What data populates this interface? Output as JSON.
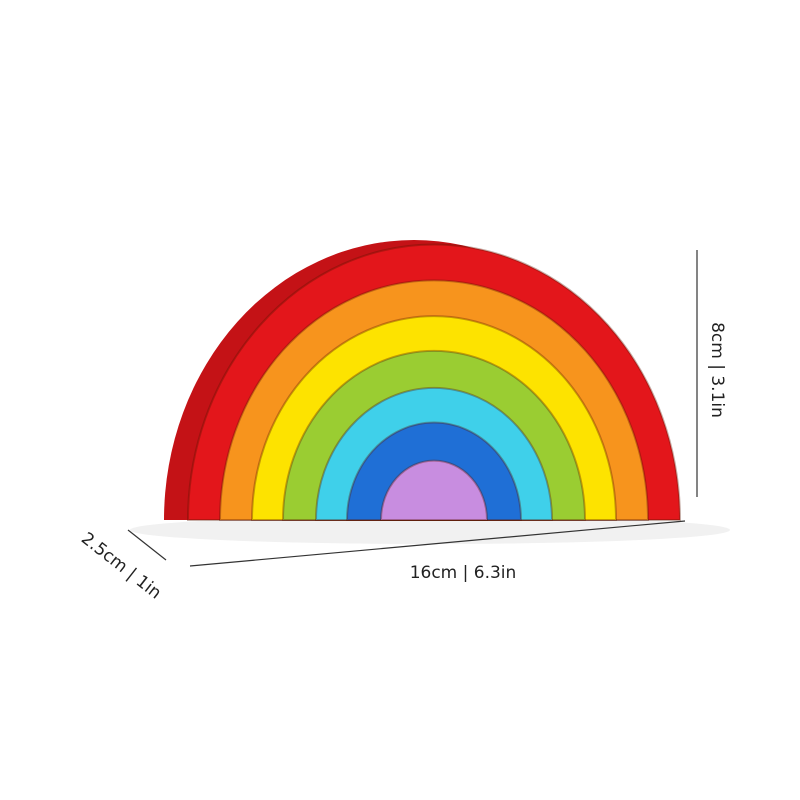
{
  "product": {
    "name_visible": "",
    "colors": {
      "red": "#e3161b",
      "red_side": "#c41216",
      "orange": "#f7941d",
      "yellow": "#fde300",
      "green": "#9acd32",
      "cyan": "#3fd0ea",
      "blue": "#1f6fd6",
      "purple": "#c88de0"
    }
  },
  "dimensions": {
    "height": "8cm | 3.1in",
    "width": "16cm | 6.3in",
    "depth": "2.5cm | 1in"
  }
}
